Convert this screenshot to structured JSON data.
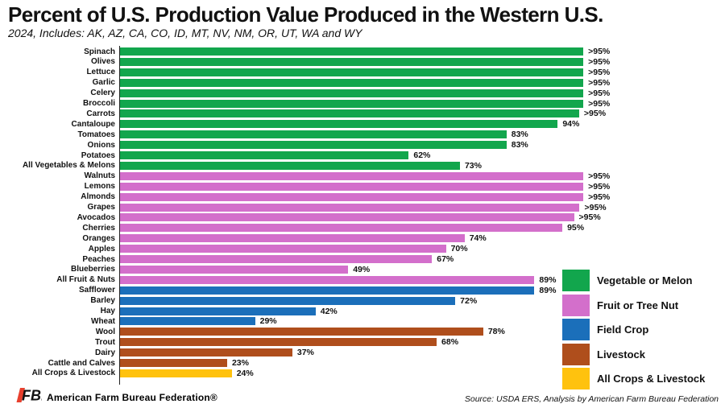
{
  "header": {
    "title": "Percent of U.S. Production Value Produced in the Western U.S.",
    "subtitle": "2024, Includes: AK, AZ, CA, CO, ID, MT, NV, NM, OR, UT, WA and WY"
  },
  "chart_data": {
    "type": "bar",
    "orientation": "horizontal",
    "xlim": [
      0,
      100
    ],
    "grid": false,
    "colors": {
      "vegetable": "#12A64D",
      "fruit": "#D36FCB",
      "field": "#1B6FBA",
      "livestock": "#AF4E1C",
      "all": "#FFC20E"
    },
    "bars": [
      {
        "category": "Spinach",
        "group": "vegetable",
        "label": ">95%",
        "value": 99.5,
        "pattern": "solid"
      },
      {
        "category": "Olives",
        "group": "vegetable",
        "label": ">95%",
        "value": 99.5,
        "pattern": "solid"
      },
      {
        "category": "Lettuce",
        "group": "vegetable",
        "label": ">95%",
        "value": 99.5,
        "pattern": "solid"
      },
      {
        "category": "Garlic",
        "group": "vegetable",
        "label": ">95%",
        "value": 99.5,
        "pattern": "solid"
      },
      {
        "category": "Celery",
        "group": "vegetable",
        "label": ">95%",
        "value": 99.5,
        "pattern": "solid"
      },
      {
        "category": "Broccoli",
        "group": "vegetable",
        "label": ">95%",
        "value": 99.5,
        "pattern": "solid"
      },
      {
        "category": "Carrots",
        "group": "vegetable",
        "label": ">95%",
        "value": 98.6,
        "pattern": "solid"
      },
      {
        "category": "Cantaloupe",
        "group": "vegetable",
        "label": "94%",
        "value": 94,
        "pattern": "solid"
      },
      {
        "category": "Tomatoes",
        "group": "vegetable",
        "label": "83%",
        "value": 83,
        "pattern": "solid"
      },
      {
        "category": "Onions",
        "group": "vegetable",
        "label": "83%",
        "value": 83,
        "pattern": "solid"
      },
      {
        "category": "Potatoes",
        "group": "vegetable",
        "label": "62%",
        "value": 62,
        "pattern": "solid"
      },
      {
        "category": "All Vegetables & Melons",
        "group": "vegetable",
        "label": "73%",
        "value": 73,
        "pattern": "dotted"
      },
      {
        "category": "Walnuts",
        "group": "fruit",
        "label": ">95%",
        "value": 99.5,
        "pattern": "solid"
      },
      {
        "category": "Lemons",
        "group": "fruit",
        "label": ">95%",
        "value": 99.5,
        "pattern": "solid"
      },
      {
        "category": "Almonds",
        "group": "fruit",
        "label": ">95%",
        "value": 99.5,
        "pattern": "solid"
      },
      {
        "category": "Grapes",
        "group": "fruit",
        "label": ">95%",
        "value": 98.7,
        "pattern": "solid"
      },
      {
        "category": "Avocados",
        "group": "fruit",
        "label": ">95%",
        "value": 97.5,
        "pattern": "solid"
      },
      {
        "category": "Cherries",
        "group": "fruit",
        "label": "95%",
        "value": 95,
        "pattern": "solid"
      },
      {
        "category": "Oranges",
        "group": "fruit",
        "label": "74%",
        "value": 74,
        "pattern": "solid"
      },
      {
        "category": "Apples",
        "group": "fruit",
        "label": "70%",
        "value": 70,
        "pattern": "solid"
      },
      {
        "category": "Peaches",
        "group": "fruit",
        "label": "67%",
        "value": 67,
        "pattern": "solid"
      },
      {
        "category": "Blueberries",
        "group": "fruit",
        "label": "49%",
        "value": 49,
        "pattern": "solid"
      },
      {
        "category": "All Fruit & Nuts",
        "group": "fruit",
        "label": "89%",
        "value": 89,
        "pattern": "dotted"
      },
      {
        "category": "Safflower",
        "group": "field",
        "label": "89%",
        "value": 89,
        "pattern": "solid"
      },
      {
        "category": "Barley",
        "group": "field",
        "label": "72%",
        "value": 72,
        "pattern": "solid"
      },
      {
        "category": "Hay",
        "group": "field",
        "label": "42%",
        "value": 42,
        "pattern": "solid"
      },
      {
        "category": "Wheat",
        "group": "field",
        "label": "29%",
        "value": 29,
        "pattern": "solid"
      },
      {
        "category": "Wool",
        "group": "livestock",
        "label": "78%",
        "value": 78,
        "pattern": "solid"
      },
      {
        "category": "Trout",
        "group": "livestock",
        "label": "68%",
        "value": 68,
        "pattern": "solid"
      },
      {
        "category": "Dairy",
        "group": "livestock",
        "label": "37%",
        "value": 37,
        "pattern": "solid"
      },
      {
        "category": "Cattle and Calves",
        "group": "livestock",
        "label": "23%",
        "value": 23,
        "pattern": "solid"
      },
      {
        "category": "All Crops & Livestock",
        "group": "all",
        "label": "24%",
        "value": 24,
        "pattern": "dotted"
      }
    ],
    "legend": {
      "position": "bottom-right",
      "items": [
        {
          "label": "Vegetable or Melon",
          "group": "vegetable",
          "pattern": "solid"
        },
        {
          "label": "Fruit or Tree Nut",
          "group": "fruit",
          "pattern": "solid"
        },
        {
          "label": "Field Crop",
          "group": "field",
          "pattern": "solid"
        },
        {
          "label": "Livestock",
          "group": "livestock",
          "pattern": "solid"
        },
        {
          "label": "All Crops & Livestock",
          "group": "all",
          "pattern": "dotted"
        }
      ]
    }
  },
  "footer": {
    "logo_text": "FB.",
    "brand": "American Farm Bureau Federation®",
    "brand_color": "#E8402E",
    "source": "Source: USDA ERS, Analysis by American Farm Bureau Federation"
  }
}
